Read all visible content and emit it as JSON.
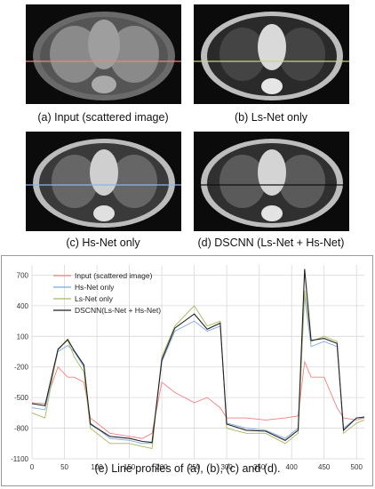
{
  "panels": [
    {
      "label": "(a) Input (scattered image)",
      "line_color": "#f08080"
    },
    {
      "label": "(b) Ls-Net only",
      "line_color": "#c8d48a"
    },
    {
      "label": "(c) Hs-Net only",
      "line_color": "#8ab4f0"
    },
    {
      "label": "(d) DSCNN (Ls-Net + Hs-Net)",
      "line_color": "#111111"
    }
  ],
  "chart_data": {
    "type": "line",
    "title": "",
    "caption": "(e) Line profiles of (a), (b), (c) and (d).",
    "xlabel": "",
    "ylabel": "",
    "xlim": [
      0,
      512
    ],
    "ylim": [
      -1100,
      800
    ],
    "x_ticks": [
      0,
      50,
      100,
      150,
      200,
      250,
      300,
      350,
      400,
      450,
      500
    ],
    "y_ticks": [
      700,
      400,
      100,
      -200,
      -500,
      -800,
      -1100
    ],
    "grid": true,
    "legend_position": "top-left",
    "x": [
      0,
      20,
      40,
      55,
      65,
      80,
      90,
      120,
      150,
      170,
      185,
      200,
      220,
      250,
      270,
      290,
      300,
      330,
      360,
      390,
      410,
      420,
      430,
      450,
      470,
      480,
      500,
      512
    ],
    "series": [
      {
        "name": "Input (scattered image)",
        "color": "#f08080",
        "values": [
          -550,
          -560,
          -200,
          -300,
          -300,
          -350,
          -700,
          -850,
          -880,
          -900,
          -850,
          -350,
          -450,
          -550,
          -500,
          -600,
          -700,
          -700,
          -720,
          -700,
          -680,
          -150,
          -300,
          -300,
          -600,
          -700,
          -720,
          -700
        ]
      },
      {
        "name": "Hs-Net only",
        "color": "#7ea6e0",
        "values": [
          -600,
          -620,
          -50,
          10,
          -50,
          -200,
          -750,
          -900,
          -920,
          -950,
          -950,
          -150,
          150,
          250,
          150,
          200,
          -750,
          -800,
          -820,
          -900,
          -800,
          500,
          0,
          50,
          0,
          -800,
          -700,
          -700
        ]
      },
      {
        "name": "Ls-Net only",
        "color": "#a8b860",
        "values": [
          -650,
          -700,
          -20,
          60,
          -100,
          -250,
          -800,
          -950,
          -950,
          -980,
          -1000,
          -100,
          200,
          400,
          200,
          250,
          -800,
          -850,
          -850,
          -950,
          -850,
          550,
          50,
          100,
          50,
          -850,
          -750,
          -720
        ]
      },
      {
        "name": "DSCNN(Ls-Net + Hs-Net)",
        "color": "#222222",
        "values": [
          -560,
          -580,
          -30,
          70,
          -40,
          -180,
          -760,
          -880,
          -900,
          -930,
          -940,
          -130,
          180,
          320,
          170,
          230,
          -760,
          -820,
          -830,
          -920,
          -820,
          760,
          60,
          80,
          30,
          -820,
          -700,
          -690
        ]
      }
    ]
  }
}
